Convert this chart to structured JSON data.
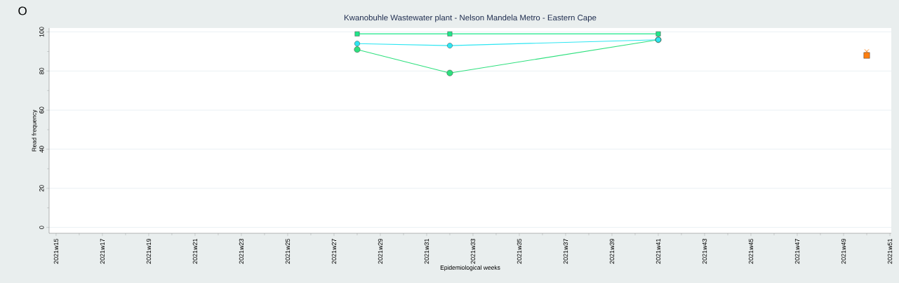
{
  "chart_data": {
    "type": "line",
    "title": "Kwanobuhle Wastewater plant - Nelson Mandela Metro - Eastern Cape",
    "xlabel": "Epidemiological weeks",
    "ylabel": "Read frequency",
    "annotations": [
      "O"
    ],
    "categories": [
      "2021w15",
      null,
      "2021w17",
      null,
      "2021w19",
      null,
      "2021w21",
      null,
      "2021w23",
      null,
      "2021w25",
      null,
      "2021w27",
      null,
      "2021w29",
      null,
      "2021w31",
      null,
      "2021w33",
      null,
      "2021w35",
      null,
      "2021w37",
      null,
      "2021w39",
      null,
      "2021w41",
      null,
      "2021w43",
      null,
      "2021w45",
      null,
      "2021w47",
      null,
      "2021w49",
      null,
      "2021w51"
    ],
    "ylim": [
      -3,
      102
    ],
    "yticks": [
      0,
      {
        "value": 10,
        "label": null
      },
      20,
      {
        "value": 30,
        "label": null
      },
      40,
      {
        "value": 50,
        "label": null
      },
      60,
      {
        "value": 70,
        "label": null
      },
      80,
      {
        "value": 90,
        "label": null
      },
      100
    ],
    "grid": "y",
    "series": [
      {
        "color": "#1ee88a",
        "marker": "square",
        "values": [
          null,
          null,
          null,
          null,
          null,
          null,
          null,
          null,
          null,
          null,
          null,
          null,
          null,
          99,
          null,
          null,
          null,
          99,
          null,
          null,
          null,
          null,
          null,
          null,
          null,
          null,
          99,
          null,
          null,
          null,
          null,
          null,
          null,
          null,
          null,
          null,
          null
        ]
      },
      {
        "color": "#2de6f2",
        "marker": "circle",
        "values": [
          null,
          null,
          null,
          null,
          null,
          null,
          null,
          null,
          null,
          null,
          null,
          null,
          null,
          94,
          null,
          null,
          null,
          93,
          null,
          null,
          null,
          null,
          null,
          null,
          null,
          null,
          96,
          null,
          null,
          null,
          null,
          null,
          null,
          null,
          null,
          null,
          null
        ]
      },
      {
        "color": "#2ee07e",
        "marker": "circle",
        "values": [
          null,
          null,
          null,
          null,
          null,
          null,
          null,
          null,
          null,
          null,
          null,
          null,
          null,
          91,
          null,
          null,
          null,
          79,
          null,
          null,
          null,
          null,
          null,
          null,
          null,
          null,
          96,
          null,
          null,
          null,
          null,
          null,
          null,
          null,
          null,
          null,
          null
        ]
      },
      {
        "type": "scatter",
        "color": "#ff7f0e",
        "marker": "square",
        "values": [
          null,
          null,
          null,
          null,
          null,
          null,
          null,
          null,
          null,
          null,
          null,
          null,
          null,
          null,
          null,
          null,
          null,
          null,
          null,
          null,
          null,
          null,
          null,
          null,
          null,
          null,
          null,
          null,
          null,
          null,
          null,
          null,
          null,
          null,
          null,
          88,
          null
        ]
      },
      {
        "type": "scatter",
        "color": "#ff7f0e",
        "marker": "cross",
        "values": [
          null,
          null,
          null,
          null,
          null,
          null,
          null,
          null,
          null,
          null,
          null,
          null,
          null,
          null,
          null,
          null,
          null,
          null,
          null,
          null,
          null,
          null,
          null,
          null,
          null,
          null,
          null,
          null,
          null,
          null,
          null,
          null,
          null,
          null,
          null,
          90,
          null
        ]
      }
    ]
  }
}
